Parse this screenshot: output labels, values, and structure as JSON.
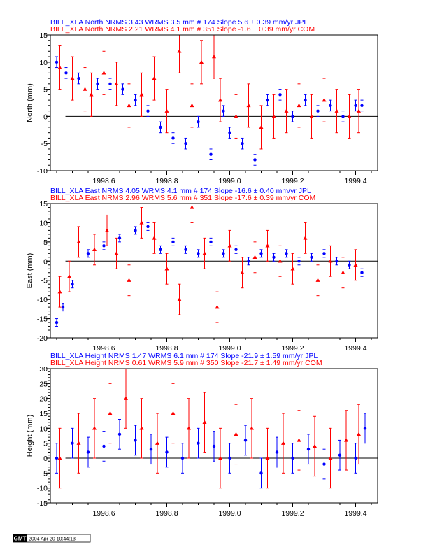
{
  "chart_data": [
    {
      "type": "scatter",
      "ylabel": "North (mm)",
      "xlim": [
        1998.43,
        1999.47
      ],
      "ylim": [
        -10,
        15
      ],
      "xticks": [
        "1998.6",
        "1998.8",
        "1999.0",
        "1999.2",
        "1999.4"
      ],
      "yticks": [
        "-10",
        "-5",
        "0",
        "5",
        "10",
        "15"
      ],
      "stats": [
        {
          "text": "BILL_XLA North NRMS 3.43 WRMS  3.5 mm # 174 Slope    5.6 ±  0.39 mm/yr JPL",
          "color": "#0000ff"
        },
        {
          "text": "BILL_XLA North NRMS 2.21 WRMS  4.1 mm # 351 Slope   -1.6 ±  0.39 mm/yr COM",
          "color": "#ff0000"
        }
      ],
      "series": [
        {
          "name": "JPL",
          "color": "#0000ff",
          "marker": "circle",
          "x": [
            1998.45,
            1998.48,
            1998.52,
            1998.58,
            1998.62,
            1998.66,
            1998.7,
            1998.74,
            1998.78,
            1998.82,
            1998.86,
            1998.9,
            1998.94,
            1998.98,
            1999.0,
            1999.04,
            1999.08,
            1999.12,
            1999.16,
            1999.2,
            1999.24,
            1999.28,
            1999.32,
            1999.36,
            1999.4,
            1999.42
          ],
          "y": [
            10,
            8,
            7,
            6,
            6,
            5,
            3,
            1,
            -2,
            -4,
            -5,
            -1,
            -7,
            1,
            -3,
            -5,
            -8,
            3,
            4,
            0,
            3,
            1,
            2,
            0,
            2,
            2
          ],
          "err": [
            1,
            1,
            1,
            1,
            1,
            1,
            1,
            1,
            1,
            1,
            1,
            1,
            1,
            1,
            1,
            1,
            1,
            1,
            1,
            1,
            1,
            1,
            1,
            1,
            1,
            1
          ]
        },
        {
          "name": "COM",
          "color": "#ff0000",
          "marker": "triangle",
          "x": [
            1998.46,
            1998.5,
            1998.54,
            1998.56,
            1998.6,
            1998.64,
            1998.68,
            1998.72,
            1998.76,
            1998.8,
            1998.84,
            1998.88,
            1998.91,
            1998.95,
            1998.97,
            1999.02,
            1999.06,
            1999.1,
            1999.14,
            1999.18,
            1999.22,
            1999.26,
            1999.3,
            1999.34,
            1999.38,
            1999.41
          ],
          "y": [
            9,
            7,
            5,
            4,
            8,
            6,
            2,
            4,
            7,
            1,
            12,
            2,
            10,
            11,
            3,
            0,
            2,
            -2,
            0,
            1,
            2,
            0,
            3,
            1,
            0,
            1
          ],
          "err": [
            4,
            4,
            4,
            4,
            4,
            4,
            4,
            4,
            4,
            4,
            4,
            4,
            4,
            4,
            4,
            4,
            4,
            4,
            4,
            4,
            4,
            4,
            4,
            4,
            4,
            4
          ]
        }
      ]
    },
    {
      "type": "scatter",
      "ylabel": "East (mm)",
      "xlim": [
        1998.43,
        1999.47
      ],
      "ylim": [
        -20,
        15
      ],
      "xticks": [
        "1998.6",
        "1998.8",
        "1999.0",
        "1999.2",
        "1999.4"
      ],
      "yticks": [
        "-20",
        "-15",
        "-10",
        "-5",
        "0",
        "5",
        "10",
        "15"
      ],
      "stats": [
        {
          "text": "BILL_XLA East NRMS 4.05 WRMS  4.1 mm # 174 Slope  -16.6 ±  0.40 mm/yr JPL",
          "color": "#0000ff"
        },
        {
          "text": "BILL_XLA East NRMS 2.96 WRMS  5.6 mm # 351 Slope  -17.6 ±  0.39 mm/yr COM",
          "color": "#ff0000"
        }
      ],
      "series": [
        {
          "name": "JPL",
          "color": "#0000ff",
          "marker": "circle",
          "x": [
            1998.45,
            1998.47,
            1998.5,
            1998.55,
            1998.6,
            1998.65,
            1998.7,
            1998.74,
            1998.78,
            1998.82,
            1998.86,
            1998.9,
            1998.94,
            1998.98,
            1999.02,
            1999.06,
            1999.1,
            1999.14,
            1999.18,
            1999.22,
            1999.26,
            1999.3,
            1999.34,
            1999.38,
            1999.42
          ],
          "y": [
            -16,
            -12,
            -6,
            2,
            4,
            6,
            8,
            9,
            3,
            5,
            3,
            2,
            5,
            2,
            3,
            0,
            2,
            1,
            2,
            0,
            1,
            2,
            0,
            -1,
            -3
          ],
          "err": [
            1,
            1,
            1,
            1,
            1,
            1,
            1,
            1,
            1,
            1,
            1,
            1,
            1,
            1,
            1,
            1,
            1,
            1,
            1,
            1,
            1,
            1,
            1,
            1,
            1
          ]
        },
        {
          "name": "COM",
          "color": "#ff0000",
          "marker": "triangle",
          "x": [
            1998.46,
            1998.49,
            1998.52,
            1998.57,
            1998.61,
            1998.64,
            1998.68,
            1998.72,
            1998.76,
            1998.8,
            1998.84,
            1998.88,
            1998.92,
            1998.96,
            1999.0,
            1999.04,
            1999.08,
            1999.12,
            1999.16,
            1999.2,
            1999.24,
            1999.28,
            1999.32,
            1999.36,
            1999.4
          ],
          "y": [
            -8,
            -4,
            5,
            3,
            8,
            2,
            -5,
            10,
            6,
            -2,
            -10,
            14,
            2,
            -12,
            4,
            -3,
            1,
            4,
            0,
            -2,
            6,
            -5,
            0,
            -3,
            -1
          ],
          "err": [
            4,
            4,
            4,
            4,
            4,
            4,
            4,
            4,
            4,
            4,
            4,
            4,
            4,
            4,
            4,
            4,
            4,
            4,
            4,
            4,
            4,
            4,
            4,
            4,
            4
          ]
        }
      ]
    },
    {
      "type": "scatter",
      "ylabel": "Height (mm)",
      "xlim": [
        1998.43,
        1999.47
      ],
      "ylim": [
        -15,
        30
      ],
      "xticks": [
        "1998.6",
        "1998.8",
        "1999.0",
        "1999.2",
        "1999.4"
      ],
      "yticks": [
        "-15",
        "-10",
        "-5",
        "0",
        "5",
        "10",
        "15",
        "20",
        "25",
        "30"
      ],
      "stats": [
        {
          "text": "BILL_XLA Height NRMS 1.47 WRMS  6.1 mm # 174 Slope  -21.9 ±  1.59 mm/yr JPL",
          "color": "#0000ff"
        },
        {
          "text": "BILL_XLA Height NRMS 0.61 WRMS  5.9 mm # 350 Slope  -21.7 ±  1.49 mm/yr COM",
          "color": "#ff0000"
        }
      ],
      "series": [
        {
          "name": "JPL",
          "color": "#0000ff",
          "marker": "circle",
          "x": [
            1998.45,
            1998.5,
            1998.55,
            1998.6,
            1998.65,
            1998.7,
            1998.75,
            1998.8,
            1998.85,
            1998.9,
            1998.95,
            1999.0,
            1999.05,
            1999.1,
            1999.15,
            1999.2,
            1999.25,
            1999.3,
            1999.35,
            1999.4,
            1999.43
          ],
          "y": [
            0,
            5,
            2,
            4,
            8,
            6,
            3,
            2,
            0,
            5,
            4,
            0,
            6,
            -5,
            2,
            0,
            3,
            -2,
            1,
            0,
            10
          ],
          "err": [
            5,
            5,
            5,
            5,
            5,
            5,
            5,
            5,
            5,
            5,
            5,
            5,
            5,
            5,
            5,
            5,
            5,
            5,
            5,
            5,
            5
          ]
        },
        {
          "name": "COM",
          "color": "#ff0000",
          "marker": "triangle",
          "x": [
            1998.46,
            1998.52,
            1998.57,
            1998.62,
            1998.67,
            1998.72,
            1998.77,
            1998.82,
            1998.87,
            1998.92,
            1998.97,
            1999.02,
            1999.07,
            1999.12,
            1999.17,
            1999.22,
            1999.27,
            1999.32,
            1999.37,
            1999.41
          ],
          "y": [
            0,
            5,
            10,
            15,
            20,
            10,
            5,
            15,
            10,
            12,
            0,
            8,
            10,
            0,
            5,
            6,
            4,
            0,
            6,
            8
          ],
          "err": [
            10,
            10,
            10,
            10,
            10,
            10,
            10,
            10,
            10,
            10,
            10,
            10,
            10,
            10,
            10,
            10,
            10,
            10,
            10,
            10
          ]
        }
      ]
    }
  ],
  "footer": {
    "logo": "GMT",
    "timestamp": "2004 Apr 20 10:44:13"
  }
}
